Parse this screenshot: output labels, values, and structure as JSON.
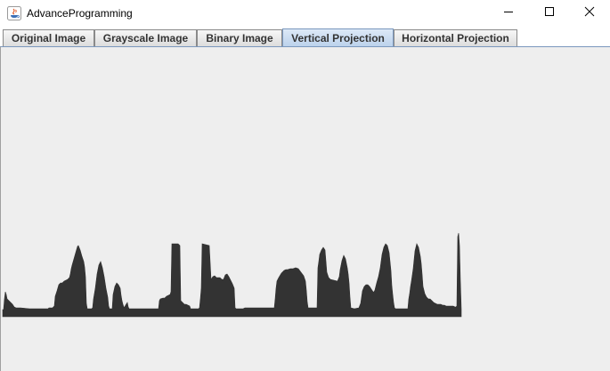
{
  "window": {
    "title": "AdvanceProgramming",
    "icon": "java-cup-icon",
    "controls": [
      "minimize-icon",
      "maximize-icon",
      "close-icon"
    ]
  },
  "tabs": [
    {
      "label": "Original Image",
      "selected": false
    },
    {
      "label": "Grayscale Image",
      "selected": false
    },
    {
      "label": "Binary Image",
      "selected": false
    },
    {
      "label": "Vertical Projection",
      "selected": true
    },
    {
      "label": "Horizontal Projection",
      "selected": false
    }
  ],
  "projection": {
    "fill_color": "#333333",
    "background_color": "#eeeeee",
    "profile": [
      [
        0,
        92
      ],
      [
        1,
        92
      ],
      [
        2,
        80
      ],
      [
        3,
        72
      ],
      [
        4,
        75
      ],
      [
        5,
        80
      ],
      [
        7,
        82
      ],
      [
        9,
        84
      ],
      [
        11,
        86
      ],
      [
        13,
        89
      ],
      [
        15,
        90
      ],
      [
        17,
        90
      ],
      [
        20,
        90
      ],
      [
        30,
        91
      ],
      [
        40,
        91
      ],
      [
        50,
        91
      ],
      [
        51,
        91
      ],
      [
        52,
        90
      ],
      [
        54,
        90
      ],
      [
        56,
        90
      ],
      [
        57,
        89
      ],
      [
        58,
        88
      ],
      [
        59,
        77
      ],
      [
        61,
        71
      ],
      [
        63,
        64
      ],
      [
        65,
        62
      ],
      [
        67,
        62
      ],
      [
        69,
        60
      ],
      [
        71,
        59
      ],
      [
        73,
        58
      ],
      [
        75,
        56
      ],
      [
        76,
        52
      ],
      [
        77,
        46
      ],
      [
        78,
        42
      ],
      [
        80,
        35
      ],
      [
        82,
        28
      ],
      [
        84,
        21
      ],
      [
        85,
        20
      ],
      [
        87,
        25
      ],
      [
        89,
        32
      ],
      [
        91,
        38
      ],
      [
        92,
        44
      ],
      [
        93,
        55
      ],
      [
        94,
        85
      ],
      [
        95,
        91
      ],
      [
        99,
        91
      ],
      [
        100,
        91
      ],
      [
        101,
        90
      ],
      [
        102,
        80
      ],
      [
        104,
        68
      ],
      [
        106,
        52
      ],
      [
        108,
        42
      ],
      [
        110,
        38
      ],
      [
        112,
        45
      ],
      [
        114,
        55
      ],
      [
        116,
        68
      ],
      [
        118,
        78
      ],
      [
        119,
        88
      ],
      [
        120,
        91
      ],
      [
        123,
        91
      ],
      [
        124,
        75
      ],
      [
        126,
        66
      ],
      [
        128,
        62
      ],
      [
        130,
        64
      ],
      [
        132,
        68
      ],
      [
        133,
        76
      ],
      [
        134,
        82
      ],
      [
        135,
        86
      ],
      [
        136,
        89
      ],
      [
        137,
        89
      ],
      [
        138,
        87
      ],
      [
        140,
        84
      ],
      [
        141,
        89
      ],
      [
        142,
        91
      ],
      [
        150,
        91
      ],
      [
        160,
        91
      ],
      [
        170,
        91
      ],
      [
        175,
        91
      ],
      [
        176,
        82
      ],
      [
        177,
        80
      ],
      [
        180,
        79
      ],
      [
        182,
        79
      ],
      [
        184,
        77
      ],
      [
        186,
        76
      ],
      [
        188,
        75
      ],
      [
        189,
        72
      ],
      [
        190,
        18
      ],
      [
        197,
        18
      ],
      [
        199,
        20
      ],
      [
        200,
        82
      ],
      [
        202,
        84
      ],
      [
        204,
        86
      ],
      [
        206,
        86
      ],
      [
        208,
        87
      ],
      [
        210,
        88
      ],
      [
        211,
        91
      ],
      [
        212,
        91
      ],
      [
        215,
        91
      ],
      [
        220,
        91
      ],
      [
        221,
        90
      ],
      [
        222,
        80
      ],
      [
        223,
        68
      ],
      [
        224,
        18
      ],
      [
        232,
        20
      ],
      [
        234,
        58
      ],
      [
        236,
        55
      ],
      [
        238,
        54
      ],
      [
        240,
        56
      ],
      [
        242,
        56
      ],
      [
        244,
        56
      ],
      [
        246,
        58
      ],
      [
        248,
        58
      ],
      [
        250,
        53
      ],
      [
        252,
        52
      ],
      [
        254,
        55
      ],
      [
        256,
        59
      ],
      [
        258,
        63
      ],
      [
        260,
        68
      ],
      [
        261,
        90
      ],
      [
        262,
        91
      ],
      [
        264,
        91
      ],
      [
        270,
        91
      ],
      [
        272,
        90
      ],
      [
        280,
        90
      ],
      [
        290,
        90
      ],
      [
        300,
        90
      ],
      [
        305,
        90
      ],
      [
        306,
        80
      ],
      [
        307,
        68
      ],
      [
        308,
        60
      ],
      [
        310,
        56
      ],
      [
        313,
        51
      ],
      [
        316,
        48
      ],
      [
        318,
        47
      ],
      [
        320,
        47
      ],
      [
        323,
        46
      ],
      [
        326,
        46
      ],
      [
        329,
        45
      ],
      [
        332,
        46
      ],
      [
        335,
        50
      ],
      [
        338,
        54
      ],
      [
        340,
        60
      ],
      [
        341,
        70
      ],
      [
        342,
        83
      ],
      [
        343,
        90
      ],
      [
        350,
        90
      ],
      [
        353,
        90
      ],
      [
        354,
        45
      ],
      [
        355,
        38
      ],
      [
        356,
        30
      ],
      [
        358,
        25
      ],
      [
        360,
        22
      ],
      [
        362,
        25
      ],
      [
        364,
        50
      ],
      [
        366,
        56
      ],
      [
        368,
        58
      ],
      [
        372,
        59
      ],
      [
        376,
        60
      ],
      [
        378,
        55
      ],
      [
        379,
        47
      ],
      [
        381,
        37
      ],
      [
        383,
        31
      ],
      [
        385,
        35
      ],
      [
        387,
        45
      ],
      [
        388,
        52
      ],
      [
        389,
        62
      ],
      [
        390,
        78
      ],
      [
        391,
        90
      ],
      [
        395,
        91
      ],
      [
        400,
        90
      ],
      [
        402,
        85
      ],
      [
        404,
        71
      ],
      [
        406,
        66
      ],
      [
        408,
        64
      ],
      [
        410,
        64
      ],
      [
        412,
        66
      ],
      [
        414,
        69
      ],
      [
        416,
        72
      ],
      [
        417,
        72
      ],
      [
        418,
        70
      ],
      [
        420,
        62
      ],
      [
        422,
        55
      ],
      [
        424,
        45
      ],
      [
        426,
        30
      ],
      [
        428,
        22
      ],
      [
        430,
        18
      ],
      [
        432,
        20
      ],
      [
        434,
        28
      ],
      [
        436,
        48
      ],
      [
        437,
        65
      ],
      [
        438,
        75
      ],
      [
        439,
        84
      ],
      [
        440,
        90
      ],
      [
        441,
        91
      ],
      [
        450,
        91
      ],
      [
        455,
        91
      ],
      [
        456,
        80
      ],
      [
        457,
        74
      ],
      [
        458,
        66
      ],
      [
        459,
        60
      ],
      [
        461,
        46
      ],
      [
        463,
        26
      ],
      [
        465,
        18
      ],
      [
        467,
        22
      ],
      [
        469,
        32
      ],
      [
        470,
        40
      ],
      [
        471,
        52
      ],
      [
        472,
        66
      ],
      [
        474,
        74
      ],
      [
        476,
        78
      ],
      [
        478,
        80
      ],
      [
        480,
        80
      ],
      [
        482,
        82
      ],
      [
        484,
        84
      ],
      [
        486,
        85
      ],
      [
        488,
        86
      ],
      [
        490,
        86
      ],
      [
        492,
        86
      ],
      [
        494,
        87
      ],
      [
        496,
        87
      ],
      [
        498,
        88
      ],
      [
        500,
        88
      ],
      [
        502,
        88
      ],
      [
        504,
        88
      ],
      [
        506,
        88
      ],
      [
        508,
        89
      ],
      [
        509,
        89
      ],
      [
        510,
        88
      ],
      [
        511,
        10
      ],
      [
        512,
        6
      ],
      [
        513,
        20
      ],
      [
        514,
        60
      ],
      [
        515,
        92
      ]
    ]
  }
}
